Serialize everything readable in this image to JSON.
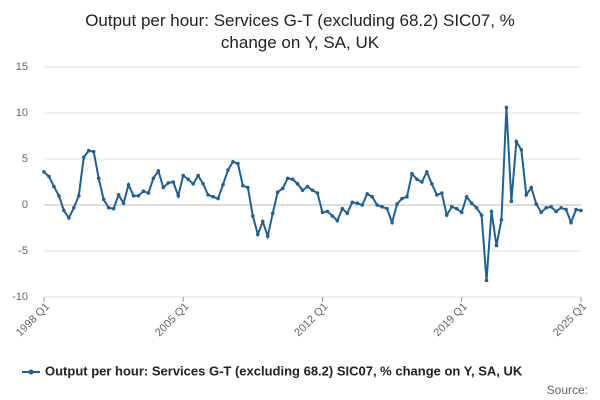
{
  "chart_data": {
    "type": "line",
    "title_lines": [
      "Output per hour: Services G-T (excluding 68.2) SIC07, %",
      "change on Y, SA, UK"
    ],
    "source": "Source:",
    "categories": [
      "1998 Q1",
      null,
      null,
      null,
      null,
      null,
      null,
      null,
      null,
      null,
      null,
      null,
      null,
      null,
      null,
      null,
      null,
      null,
      null,
      null,
      null,
      null,
      null,
      null,
      null,
      null,
      null,
      null,
      "2005 Q1",
      null,
      null,
      null,
      null,
      null,
      null,
      null,
      null,
      null,
      null,
      null,
      null,
      null,
      null,
      null,
      null,
      null,
      null,
      null,
      null,
      null,
      null,
      null,
      null,
      null,
      null,
      null,
      "2012 Q1",
      null,
      null,
      null,
      null,
      null,
      null,
      null,
      null,
      null,
      null,
      null,
      null,
      null,
      null,
      null,
      null,
      null,
      null,
      null,
      null,
      null,
      null,
      null,
      null,
      null,
      null,
      null,
      "2019 Q1",
      null,
      null,
      null,
      null,
      null,
      null,
      null,
      null,
      null,
      null,
      null,
      null,
      null,
      null,
      null,
      null,
      null,
      null,
      null,
      null,
      null,
      null,
      null,
      "2025 Q1"
    ],
    "series": [
      {
        "name": "Output per hour: Services G-T (excluding 68.2) SIC07, % change on Y, SA, UK",
        "color": "#206095",
        "values": [
          3.6,
          3.1,
          2.0,
          1.0,
          -0.6,
          -1.4,
          -0.3,
          1.0,
          5.2,
          5.9,
          5.8,
          2.9,
          0.6,
          -0.3,
          -0.4,
          1.1,
          0.2,
          2.2,
          1.0,
          1.0,
          1.5,
          1.3,
          2.9,
          3.7,
          1.9,
          2.4,
          2.5,
          1.0,
          3.2,
          2.8,
          2.3,
          3.2,
          2.3,
          1.1,
          0.9,
          0.7,
          2.2,
          3.8,
          4.7,
          4.5,
          2.1,
          1.9,
          -1.2,
          -3.2,
          -1.8,
          -3.4,
          -0.9,
          1.4,
          1.8,
          2.9,
          2.8,
          2.3,
          1.6,
          2.0,
          1.6,
          1.3,
          -0.8,
          -0.7,
          -1.2,
          -1.7,
          -0.4,
          -0.9,
          0.3,
          0.2,
          0.0,
          1.2,
          0.9,
          0.0,
          -0.2,
          -0.4,
          -1.9,
          0.1,
          0.7,
          0.9,
          3.4,
          2.8,
          2.5,
          3.6,
          2.3,
          1.1,
          1.3,
          -1.1,
          -0.2,
          -0.4,
          -0.8,
          0.9,
          0.2,
          -0.3,
          -1.1,
          -8.2,
          -0.7,
          -4.4,
          -1.6,
          10.6,
          0.4,
          6.9,
          6.0,
          1.1,
          1.9,
          0.1,
          -0.8,
          -0.3,
          -0.2,
          -0.7,
          -0.3,
          -0.5,
          -1.9,
          -0.5,
          -0.6
        ]
      }
    ],
    "ylim": [
      -10,
      15
    ],
    "yticks": [
      -10,
      -5,
      0,
      5,
      10,
      15
    ],
    "grid": true,
    "legend": "bottom"
  }
}
